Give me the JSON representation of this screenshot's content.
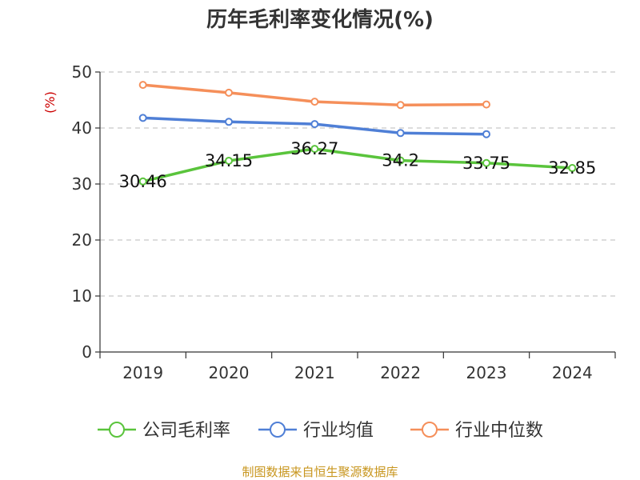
{
  "chart_data": {
    "type": "line",
    "title": "历年毛利率变化情况(%)",
    "ylabel": "(%)",
    "categories": [
      "2019",
      "2020",
      "2021",
      "2022",
      "2023",
      "2024"
    ],
    "ylim": [
      0,
      50
    ],
    "yticks": [
      0,
      10,
      20,
      30,
      40,
      50
    ],
    "grid": true,
    "legend_position": "bottom",
    "series": [
      {
        "name": "公司毛利率",
        "color": "#5ac43c",
        "values": [
          30.46,
          34.15,
          36.27,
          34.2,
          33.75,
          32.85
        ],
        "labels": [
          "30.46",
          "34.15",
          "36.27",
          "34.2",
          "33.75",
          "32.85"
        ]
      },
      {
        "name": "行业均值",
        "color": "#4f7fd6",
        "values": [
          41.8,
          41.1,
          40.7,
          39.1,
          38.9,
          null
        ]
      },
      {
        "name": "行业中位数",
        "color": "#f58f5a",
        "values": [
          47.7,
          46.3,
          44.7,
          44.1,
          44.2,
          null
        ]
      }
    ]
  },
  "source": "制图数据来自恒生聚源数据库"
}
